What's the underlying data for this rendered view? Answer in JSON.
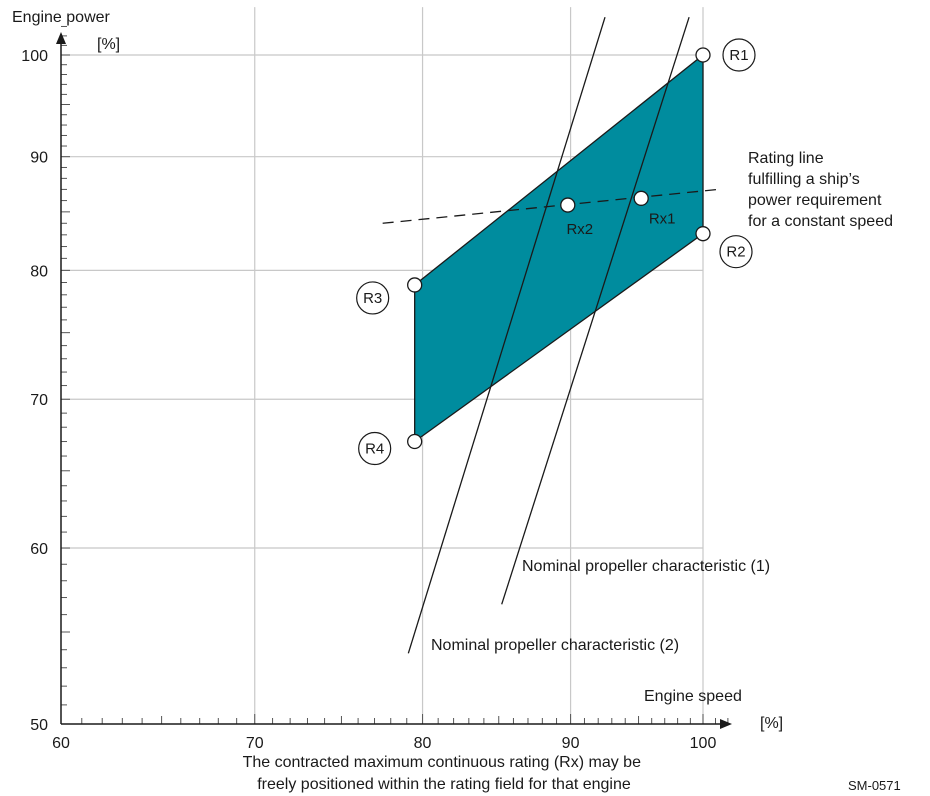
{
  "chart_data": {
    "type": "area",
    "title": "",
    "xlabel": "Engine speed",
    "xunit": "[%]",
    "ylabel": "Engine power",
    "yunit": "[%]",
    "xscale": "log",
    "yscale": "log",
    "xlim": [
      60,
      103
    ],
    "ylim": [
      50,
      104
    ],
    "xticks": [
      60,
      70,
      80,
      90,
      100
    ],
    "yticks": [
      50,
      60,
      70,
      80,
      90,
      100
    ],
    "grid": true,
    "colors": {
      "field": "#008c9e",
      "line": "#1a1a1a",
      "grid": "#c8c8c8"
    },
    "rating_field": [
      {
        "label": "R1",
        "x": 100,
        "y": 100
      },
      {
        "label": "R2",
        "x": 100,
        "y": 83.1
      },
      {
        "label": "R4",
        "x": 79.5,
        "y": 67.0
      },
      {
        "label": "R3",
        "x": 79.5,
        "y": 78.8
      }
    ],
    "points": [
      {
        "label": "R1",
        "x": 100,
        "y": 100
      },
      {
        "label": "R2",
        "x": 100,
        "y": 83.1
      },
      {
        "label": "R3",
        "x": 79.5,
        "y": 78.8
      },
      {
        "label": "R4",
        "x": 79.5,
        "y": 67.0
      },
      {
        "label": "Rx1",
        "x": 95.2,
        "y": 86.2
      },
      {
        "label": "Rx2",
        "x": 89.8,
        "y": 85.6
      }
    ],
    "lines": [
      {
        "name": "Nominal propeller characteristic (1)",
        "x": [
          85.2,
          98.9
        ],
        "y": [
          56.6,
          104.0
        ]
      },
      {
        "name": "Nominal propeller characteristic (2)",
        "x": [
          79.1,
          92.5
        ],
        "y": [
          53.8,
          104.0
        ]
      },
      {
        "name": "Rating line",
        "style": "dashed",
        "x": [
          77.5,
          101.2
        ],
        "y": [
          84.0,
          87.0
        ]
      }
    ],
    "annotations": {
      "rating_line": [
        "Rating line",
        "fulfilling a ship’s",
        "power requirement",
        "for a constant speed"
      ],
      "prop1": "Nominal propeller characteristic (1)",
      "prop2": "Nominal propeller characteristic (2)",
      "footnote": [
        "The contracted maximum continuous rating (Rx) may be",
        "freely positioned within the rating field for that engine"
      ],
      "code": "SM-0571"
    }
  }
}
